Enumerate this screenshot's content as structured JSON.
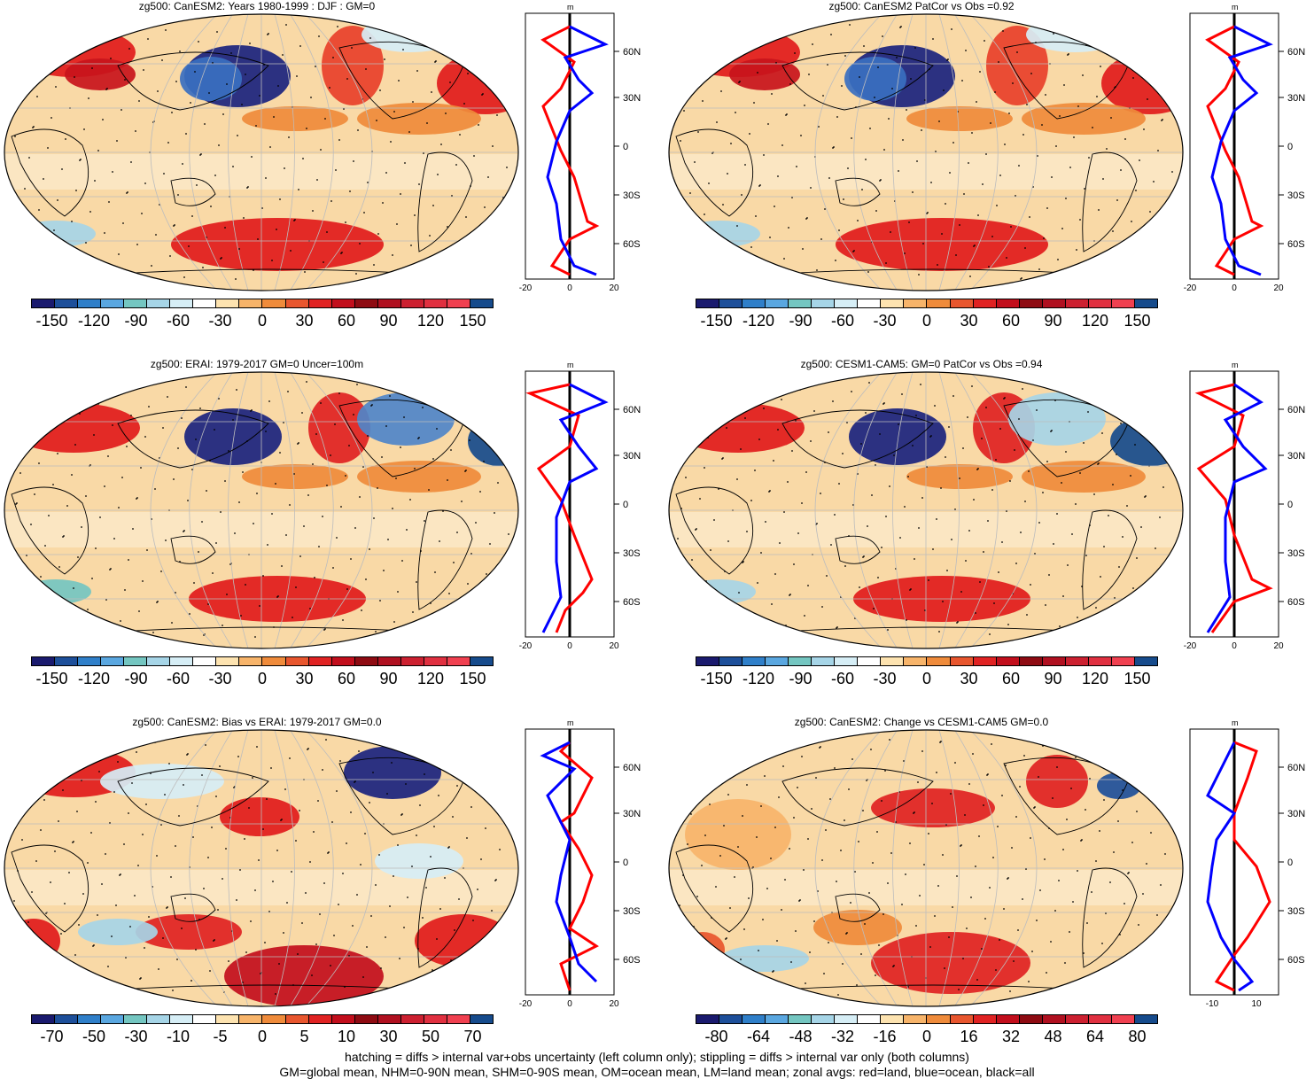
{
  "panels": [
    {
      "title": "zg500: CanESM2: Years 1980-1999 : DJF : GM=0",
      "cbar_labels": [
        "-150",
        "-120",
        "-90",
        "-60",
        "-30",
        "0",
        "30",
        "60",
        "90",
        "120",
        "150"
      ],
      "profile_xlabels": [
        "-20",
        "0",
        "20"
      ],
      "profile_unit": "m",
      "lat_labels": [
        "60N",
        "30N",
        "0",
        "30S",
        "60S"
      ]
    },
    {
      "title": "zg500: CanESM2 PatCor vs Obs =0.92",
      "cbar_labels": [
        "-150",
        "-120",
        "-90",
        "-60",
        "-30",
        "0",
        "30",
        "60",
        "90",
        "120",
        "150"
      ],
      "profile_xlabels": [
        "-20",
        "0",
        "20"
      ],
      "profile_unit": "m",
      "lat_labels": [
        "60N",
        "30N",
        "0",
        "30S",
        "60S"
      ]
    },
    {
      "title": "zg500: ERAI: 1979-2017 GM=0 Uncer=100m",
      "cbar_labels": [
        "-150",
        "-120",
        "-90",
        "-60",
        "-30",
        "0",
        "30",
        "60",
        "90",
        "120",
        "150"
      ],
      "profile_xlabels": [
        "-20",
        "0",
        "20"
      ],
      "profile_unit": "m",
      "lat_labels": [
        "60N",
        "30N",
        "0",
        "30S",
        "60S"
      ]
    },
    {
      "title": "zg500: CESM1-CAM5: GM=0 PatCor vs Obs =0.94",
      "cbar_labels": [
        "-150",
        "-120",
        "-90",
        "-60",
        "-30",
        "0",
        "30",
        "60",
        "90",
        "120",
        "150"
      ],
      "profile_xlabels": [
        "-20",
        "0",
        "20"
      ],
      "profile_unit": "m",
      "lat_labels": [
        "60N",
        "30N",
        "0",
        "30S",
        "60S"
      ]
    },
    {
      "title": "zg500: CanESM2: Bias vs ERAI: 1979-2017 GM=0.0",
      "cbar_labels": [
        "-70",
        "-50",
        "-30",
        "-10",
        "-5",
        "0",
        "5",
        "10",
        "30",
        "50",
        "70"
      ],
      "profile_xlabels": [
        "-20",
        "0",
        "20"
      ],
      "profile_unit": "m",
      "lat_labels": [
        "60N",
        "30N",
        "0",
        "30S",
        "60S"
      ]
    },
    {
      "title": "zg500: CanESM2: Change vs CESM1-CAM5 GM=0.0",
      "cbar_labels": [
        "-80",
        "-64",
        "-48",
        "-32",
        "-16",
        "0",
        "16",
        "32",
        "48",
        "64",
        "80"
      ],
      "profile_xlabels": [
        "-10",
        "10"
      ],
      "profile_unit": "m",
      "lat_labels": [
        "60N",
        "30N",
        "0",
        "30S",
        "60S"
      ]
    }
  ],
  "colorbar_colors": [
    "#1a1a6e",
    "#1d4f9a",
    "#2f7fc9",
    "#5aa7e0",
    "#74c6c1",
    "#a6d5e7",
    "#d6eef6",
    "#ffffff",
    "#fde3b0",
    "#f7b46a",
    "#ef8b3b",
    "#e8562e",
    "#e02222",
    "#c20e1c",
    "#8e0b12",
    "#b01020",
    "#cc2030",
    "#e03040",
    "#f04050",
    "#164b8c"
  ],
  "colors": {
    "red_line": "#ff0000",
    "blue_line": "#0000ff",
    "black_line": "#000000",
    "neg_strong": "#1a237e",
    "pos_strong": "#e11b1b",
    "ocean": "#f9d9a6",
    "land_orange": "#ef9650"
  },
  "footer": {
    "line1": "hatching = diffs > internal var+obs uncertainty (left column only); stippling = diffs > internal var only (both columns)",
    "line2": "GM=global mean, NHM=0-90N mean, SHM=0-90S mean, OM=ocean mean, LM=land mean; zonal avgs: red=land, blue=ocean, black=all"
  }
}
